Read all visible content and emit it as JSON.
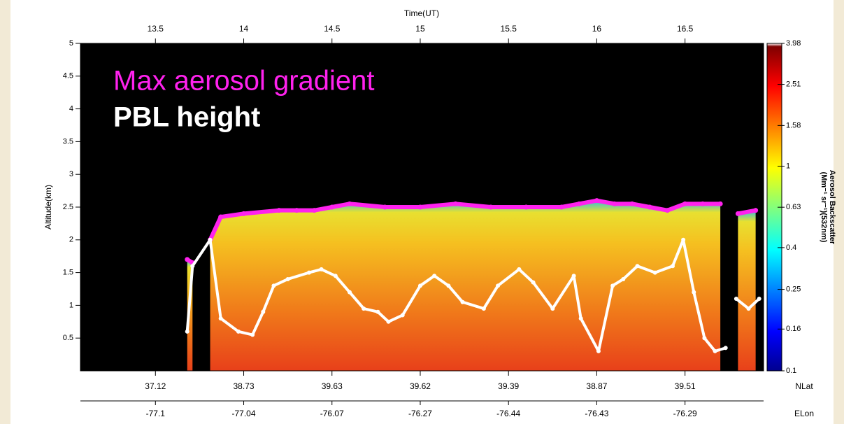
{
  "chart_data": {
    "type": "line",
    "x_label": "Time(UT)",
    "y_label": "Altitude(km)",
    "xlim": [
      13.075,
      16.945
    ],
    "xticks": [
      13.5,
      14,
      14.5,
      15,
      15.5,
      16,
      16.5
    ],
    "ylim": [
      0,
      5
    ],
    "yticks": [
      0.5,
      1,
      1.5,
      2,
      2.5,
      3,
      3.5,
      4,
      4.5,
      5
    ],
    "lat_title": "NLat",
    "lat_labels": [
      37.12,
      38.73,
      39.63,
      39.62,
      39.39,
      38.87,
      39.51
    ],
    "lon_title": "ELon",
    "lon_labels": [
      -77.1,
      -77.04,
      -76.07,
      -76.27,
      -76.44,
      -76.43,
      -76.29
    ],
    "annotations": [
      "Max aerosol gradient",
      "PBL height"
    ],
    "series": [
      {
        "name": "Max aerosol gradient",
        "color": "#ff22ee",
        "x": [
          13.68,
          13.71,
          13.76,
          13.81,
          13.87,
          14.0,
          14.2,
          14.3,
          14.4,
          14.5,
          14.6,
          14.8,
          15.0,
          15.2,
          15.4,
          15.6,
          15.8,
          15.9,
          16.0,
          16.1,
          16.2,
          16.3,
          16.4,
          16.5,
          16.6,
          16.7,
          16.76,
          16.8,
          16.9
        ],
        "values": [
          1.7,
          1.65,
          null,
          2.0,
          2.35,
          2.4,
          2.45,
          2.45,
          2.45,
          2.5,
          2.55,
          2.5,
          2.5,
          2.55,
          2.5,
          2.5,
          2.5,
          2.55,
          2.6,
          2.55,
          2.55,
          2.5,
          2.45,
          2.55,
          2.55,
          2.55,
          null,
          2.4,
          2.45
        ]
      },
      {
        "name": "PBL height",
        "color": "#ffffff",
        "x": [
          13.68,
          13.71,
          13.81,
          13.87,
          13.97,
          14.05,
          14.11,
          14.17,
          14.25,
          14.37,
          14.44,
          14.52,
          14.6,
          14.68,
          14.76,
          14.82,
          14.9,
          15.0,
          15.08,
          15.16,
          15.24,
          15.36,
          15.44,
          15.56,
          15.64,
          15.75,
          15.87,
          15.91,
          16.01,
          16.09,
          16.15,
          16.23,
          16.33,
          16.43,
          16.49,
          16.55,
          16.61,
          16.67,
          16.73,
          16.76,
          16.79,
          16.86,
          16.92
        ],
        "values": [
          0.6,
          1.6,
          2.0,
          0.8,
          0.6,
          0.55,
          0.9,
          1.3,
          1.4,
          1.5,
          1.55,
          1.45,
          1.2,
          0.95,
          0.9,
          0.75,
          0.85,
          1.3,
          1.45,
          1.3,
          1.05,
          0.95,
          1.3,
          1.55,
          1.35,
          0.95,
          1.45,
          0.8,
          0.3,
          1.3,
          1.4,
          1.6,
          1.5,
          1.6,
          2.0,
          1.2,
          0.5,
          0.3,
          0.35,
          null,
          1.1,
          0.95,
          1.1
        ]
      }
    ],
    "colorbar_label": [
      "Aerosol Backscatter",
      "(Mm⁻¹ sr⁻¹)(532nm)"
    ],
    "clim": [
      0.1,
      3.98
    ],
    "cticks": [
      0.1,
      0.16,
      0.25,
      0.4,
      0.63,
      1,
      1.58,
      2.51,
      3.98
    ],
    "color_scale": "log"
  }
}
